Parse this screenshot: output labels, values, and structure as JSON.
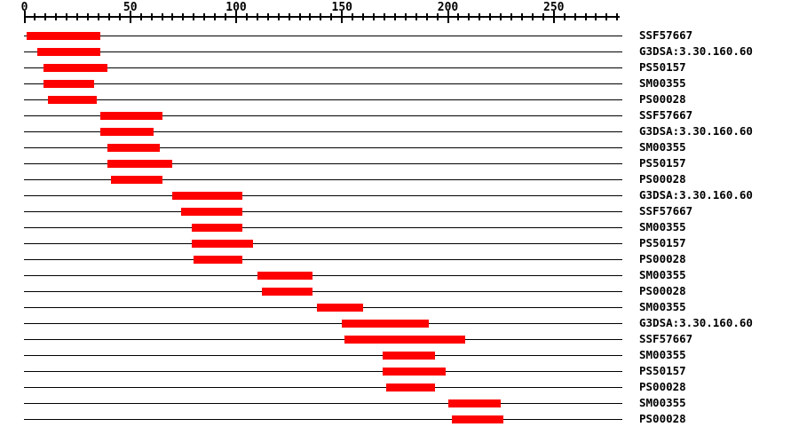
{
  "chart_data": {
    "type": "bar",
    "subtype": "horizontal-span-domain-map",
    "title": "",
    "xlabel": "",
    "ylabel": "",
    "axis": {
      "min": 0,
      "max": 281,
      "minor_tick_step": 5,
      "last_minor_tick": 280,
      "major_tick_step": 50,
      "major_tick_labels": [
        "0",
        "50",
        "100",
        "150",
        "200",
        "250"
      ]
    },
    "colors": {
      "bar": "#ff0000",
      "line": "#000000",
      "text": "#000000",
      "background": "#ffffff"
    },
    "grid": false,
    "legend": false,
    "rows": [
      {
        "label": "SSF57667",
        "start": 1,
        "end": 36
      },
      {
        "label": "G3DSA:3.30.160.60",
        "start": 6,
        "end": 36
      },
      {
        "label": "PS50157",
        "start": 9,
        "end": 39
      },
      {
        "label": "SM00355",
        "start": 9,
        "end": 33
      },
      {
        "label": "PS00028",
        "start": 11,
        "end": 34
      },
      {
        "label": "SSF57667",
        "start": 36,
        "end": 65
      },
      {
        "label": "G3DSA:3.30.160.60",
        "start": 36,
        "end": 61
      },
      {
        "label": "SM00355",
        "start": 39,
        "end": 64
      },
      {
        "label": "PS50157",
        "start": 39,
        "end": 70
      },
      {
        "label": "PS00028",
        "start": 41,
        "end": 65
      },
      {
        "label": "G3DSA:3.30.160.60",
        "start": 70,
        "end": 103
      },
      {
        "label": "SSF57667",
        "start": 74,
        "end": 103
      },
      {
        "label": "SM00355",
        "start": 79,
        "end": 103
      },
      {
        "label": "PS50157",
        "start": 79,
        "end": 108
      },
      {
        "label": "PS00028",
        "start": 80,
        "end": 103
      },
      {
        "label": "SM00355",
        "start": 110,
        "end": 136
      },
      {
        "label": "PS00028",
        "start": 112,
        "end": 136
      },
      {
        "label": "SM00355",
        "start": 138,
        "end": 160
      },
      {
        "label": "G3DSA:3.30.160.60",
        "start": 150,
        "end": 191
      },
      {
        "label": "SSF57667",
        "start": 151,
        "end": 208
      },
      {
        "label": "SM00355",
        "start": 169,
        "end": 194
      },
      {
        "label": "PS50157",
        "start": 169,
        "end": 199
      },
      {
        "label": "PS00028",
        "start": 171,
        "end": 194
      },
      {
        "label": "SM00355",
        "start": 200,
        "end": 225
      },
      {
        "label": "PS00028",
        "start": 202,
        "end": 226
      }
    ]
  }
}
